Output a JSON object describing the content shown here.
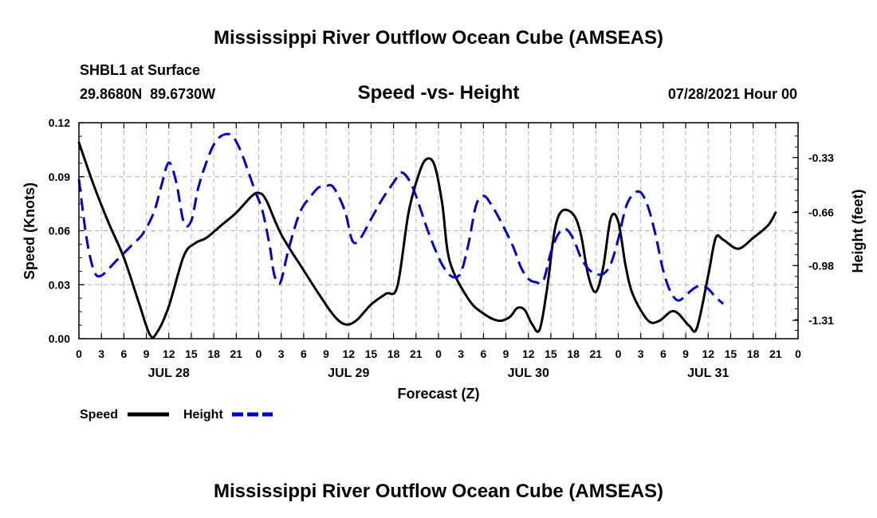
{
  "page": {
    "title": "Mississippi River Outflow Ocean Cube (AMSEAS)",
    "footer_title": "Mississippi River Outflow Ocean Cube (AMSEAS)",
    "station": "SHBL1 at Surface",
    "coords": "29.8680N  89.6730W",
    "subtitle": "Speed -vs- Height",
    "datetime": "07/28/2021 Hour 00"
  },
  "colors": {
    "speed": "#000000",
    "height": "#0000cc",
    "grid": "#b4b4b4"
  },
  "chart_data": {
    "type": "line",
    "title": "Speed -vs- Height",
    "xlabel": "Forecast (Z)",
    "ylabel_left": "Speed (Knots)",
    "ylabel_right": "Height (feet)",
    "x_unit": "forecast hour",
    "xlim": [
      0,
      96
    ],
    "x_tick_labels": [
      "0",
      "3",
      "6",
      "9",
      "12",
      "15",
      "18",
      "21",
      "0",
      "3",
      "6",
      "9",
      "12",
      "15",
      "18",
      "21",
      "0",
      "3",
      "6",
      "9",
      "12",
      "15",
      "18",
      "21",
      "0",
      "3",
      "6",
      "9",
      "12",
      "15",
      "18",
      "21",
      "0"
    ],
    "day_labels": [
      {
        "x": 12,
        "label": "JUL 28"
      },
      {
        "x": 36,
        "label": "JUL 29"
      },
      {
        "x": 60,
        "label": "JUL 30"
      },
      {
        "x": 84,
        "label": "JUL 31"
      }
    ],
    "left_axis": {
      "ylim": [
        0,
        0.12
      ],
      "ticks": [
        0,
        0.03,
        0.06,
        0.09,
        0.12
      ],
      "tick_labels": [
        "0.00",
        "0.03",
        "0.06",
        "0.09",
        "0.12"
      ]
    },
    "right_axis": {
      "ylim": [
        -1.42,
        -0.12
      ],
      "ticks": [
        -0.33,
        -0.66,
        -0.98,
        -1.31
      ],
      "tick_labels": [
        "-0.33",
        "-0.66",
        "-0.98",
        "-1.31"
      ]
    },
    "grid": true,
    "legend": [
      {
        "name": "Speed",
        "style": "solid"
      },
      {
        "name": "Height",
        "style": "dashed"
      }
    ],
    "series": [
      {
        "name": "Speed",
        "axis": "left",
        "style": "solid",
        "points": [
          [
            0,
            0.109
          ],
          [
            2,
            0.085
          ],
          [
            4,
            0.064
          ],
          [
            6,
            0.045
          ],
          [
            8,
            0.02
          ],
          [
            9.5,
            0.002
          ],
          [
            10.5,
            0.004
          ],
          [
            12,
            0.018
          ],
          [
            14,
            0.046
          ],
          [
            15.5,
            0.053
          ],
          [
            17,
            0.056
          ],
          [
            19,
            0.063
          ],
          [
            21,
            0.07
          ],
          [
            23,
            0.079
          ],
          [
            24,
            0.081
          ],
          [
            25,
            0.077
          ],
          [
            27,
            0.058
          ],
          [
            30,
            0.038
          ],
          [
            32,
            0.025
          ],
          [
            34,
            0.013
          ],
          [
            35.5,
            0.008
          ],
          [
            37,
            0.01
          ],
          [
            39,
            0.019
          ],
          [
            41,
            0.025
          ],
          [
            42.5,
            0.029
          ],
          [
            44,
            0.07
          ],
          [
            45.5,
            0.093
          ],
          [
            46.5,
            0.1
          ],
          [
            47.5,
            0.096
          ],
          [
            48.5,
            0.075
          ],
          [
            49.5,
            0.043
          ],
          [
            52,
            0.022
          ],
          [
            54,
            0.014
          ],
          [
            56,
            0.01
          ],
          [
            57.5,
            0.012
          ],
          [
            58.5,
            0.017
          ],
          [
            59.5,
            0.016
          ],
          [
            60.5,
            0.008
          ],
          [
            61.5,
            0.005
          ],
          [
            62.5,
            0.028
          ],
          [
            63.5,
            0.06
          ],
          [
            64.5,
            0.071
          ],
          [
            66,
            0.069
          ],
          [
            67,
            0.058
          ],
          [
            68,
            0.035
          ],
          [
            69,
            0.026
          ],
          [
            70,
            0.04
          ],
          [
            71,
            0.067
          ],
          [
            72,
            0.065
          ],
          [
            73,
            0.04
          ],
          [
            74,
            0.024
          ],
          [
            76,
            0.01
          ],
          [
            77.5,
            0.01
          ],
          [
            79,
            0.015
          ],
          [
            80,
            0.014
          ],
          [
            81.5,
            0.007
          ],
          [
            82.5,
            0.006
          ],
          [
            84,
            0.035
          ],
          [
            85,
            0.056
          ],
          [
            86,
            0.055
          ],
          [
            88,
            0.05
          ],
          [
            90,
            0.056
          ],
          [
            92,
            0.063
          ],
          [
            93,
            0.07
          ]
        ]
      },
      {
        "name": "Height",
        "axis": "right",
        "style": "dashed",
        "points": [
          [
            0,
            -0.46
          ],
          [
            1,
            -0.81
          ],
          [
            2,
            -1.01
          ],
          [
            3,
            -1.04
          ],
          [
            5,
            -0.95
          ],
          [
            7,
            -0.86
          ],
          [
            8.5,
            -0.79
          ],
          [
            10,
            -0.66
          ],
          [
            11,
            -0.5
          ],
          [
            12,
            -0.36
          ],
          [
            13,
            -0.48
          ],
          [
            14,
            -0.72
          ],
          [
            15,
            -0.71
          ],
          [
            16,
            -0.5
          ],
          [
            17.5,
            -0.3
          ],
          [
            18.5,
            -0.22
          ],
          [
            19.5,
            -0.19
          ],
          [
            20.5,
            -0.2
          ],
          [
            21.5,
            -0.28
          ],
          [
            22.5,
            -0.4
          ],
          [
            23.5,
            -0.53
          ],
          [
            24.5,
            -0.65
          ],
          [
            25.5,
            -0.87
          ],
          [
            26,
            -1.02
          ],
          [
            26.5,
            -1.08
          ],
          [
            27,
            -1.07
          ],
          [
            28,
            -0.88
          ],
          [
            29.5,
            -0.66
          ],
          [
            31,
            -0.56
          ],
          [
            32,
            -0.51
          ],
          [
            33,
            -0.5
          ],
          [
            34,
            -0.51
          ],
          [
            35.5,
            -0.65
          ],
          [
            36.5,
            -0.83
          ],
          [
            37.5,
            -0.82
          ],
          [
            39,
            -0.7
          ],
          [
            40.5,
            -0.58
          ],
          [
            42,
            -0.48
          ],
          [
            43,
            -0.42
          ],
          [
            44,
            -0.46
          ],
          [
            45,
            -0.56
          ],
          [
            46.5,
            -0.76
          ],
          [
            48,
            -0.93
          ],
          [
            49,
            -1.01
          ],
          [
            50,
            -1.05
          ],
          [
            51,
            -1.02
          ],
          [
            52,
            -0.85
          ],
          [
            53,
            -0.62
          ],
          [
            54,
            -0.56
          ],
          [
            55,
            -0.61
          ],
          [
            56.5,
            -0.73
          ],
          [
            58,
            -0.87
          ],
          [
            59,
            -0.99
          ],
          [
            60,
            -1.06
          ],
          [
            61,
            -1.08
          ],
          [
            62,
            -1.07
          ],
          [
            63,
            -0.9
          ],
          [
            64,
            -0.79
          ],
          [
            65,
            -0.76
          ],
          [
            66,
            -0.82
          ],
          [
            67,
            -0.93
          ],
          [
            68,
            -1.0
          ],
          [
            69,
            -1.03
          ],
          [
            70,
            -1.03
          ],
          [
            71,
            -0.97
          ],
          [
            72,
            -0.82
          ],
          [
            73,
            -0.63
          ],
          [
            74,
            -0.55
          ],
          [
            75,
            -0.54
          ],
          [
            76,
            -0.63
          ],
          [
            77,
            -0.8
          ],
          [
            78,
            -1.01
          ],
          [
            79,
            -1.14
          ],
          [
            80,
            -1.19
          ],
          [
            81,
            -1.16
          ],
          [
            82,
            -1.12
          ],
          [
            83,
            -1.1
          ],
          [
            84,
            -1.12
          ],
          [
            85,
            -1.17
          ],
          [
            86,
            -1.21
          ]
        ]
      }
    ]
  }
}
